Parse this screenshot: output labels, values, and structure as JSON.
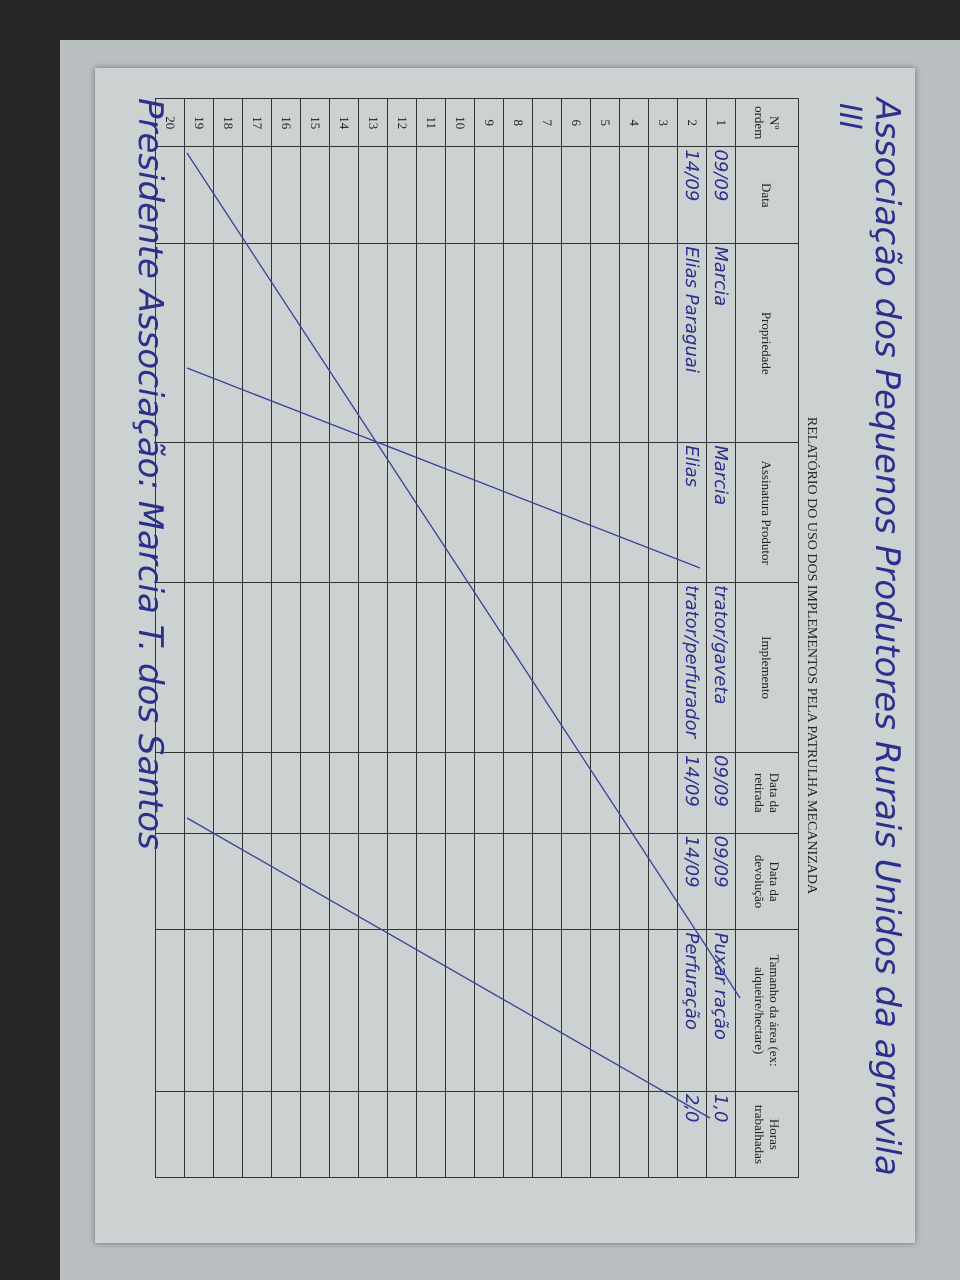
{
  "document": {
    "title_line1": "Associação dos Pequenos Produtores Rurais Unidos da agrovila",
    "title_line2": "III",
    "report_title": "RELATÓRIO DO USO DOS IMPLEMENTOS PELA PATRULHA MECANIZADA",
    "columns": [
      "Nº ordem",
      "Data",
      "Propriedade",
      "Assinatura Produtor",
      "Implemento",
      "Data da retirada",
      "Data da devolução",
      "Tamanho da área (ex: alqueire/hectare)",
      "Horas trabalhadas"
    ],
    "rows": [
      [
        "1",
        "09/09",
        "Marcia",
        "Marcia",
        "trator/gaveta",
        "09/09",
        "09/09",
        "Puxar ração",
        "1,0"
      ],
      [
        "2",
        "14/09",
        "Elias Paraguai",
        "Elias",
        "trator/perfurador",
        "14/09",
        "14/09",
        "Perfuração",
        "2,0"
      ],
      [
        "3",
        "",
        "",
        "",
        "",
        "",
        "",
        "",
        ""
      ],
      [
        "4",
        "",
        "",
        "",
        "",
        "",
        "",
        "",
        ""
      ],
      [
        "5",
        "",
        "",
        "",
        "",
        "",
        "",
        "",
        ""
      ],
      [
        "6",
        "",
        "",
        "",
        "",
        "",
        "",
        "",
        ""
      ],
      [
        "7",
        "",
        "",
        "",
        "",
        "",
        "",
        "",
        ""
      ],
      [
        "8",
        "",
        "",
        "",
        "",
        "",
        "",
        "",
        ""
      ],
      [
        "9",
        "",
        "",
        "",
        "",
        "",
        "",
        "",
        ""
      ],
      [
        "10",
        "",
        "",
        "",
        "",
        "",
        "",
        "",
        ""
      ],
      [
        "11",
        "",
        "",
        "",
        "",
        "",
        "",
        "",
        ""
      ],
      [
        "12",
        "",
        "",
        "",
        "",
        "",
        "",
        "",
        ""
      ],
      [
        "13",
        "",
        "",
        "",
        "",
        "",
        "",
        "",
        ""
      ],
      [
        "14",
        "",
        "",
        "",
        "",
        "",
        "",
        "",
        ""
      ],
      [
        "15",
        "",
        "",
        "",
        "",
        "",
        "",
        "",
        ""
      ],
      [
        "16",
        "",
        "",
        "",
        "",
        "",
        "",
        "",
        ""
      ],
      [
        "17",
        "",
        "",
        "",
        "",
        "",
        "",
        "",
        ""
      ],
      [
        "18",
        "",
        "",
        "",
        "",
        "",
        "",
        "",
        ""
      ],
      [
        "19",
        "",
        "",
        "",
        "",
        "",
        "",
        "",
        ""
      ],
      [
        "20",
        "",
        "",
        "",
        "",
        "",
        "",
        "",
        ""
      ]
    ],
    "signature": "Presidente Associação: Marcia T. dos Santos"
  }
}
